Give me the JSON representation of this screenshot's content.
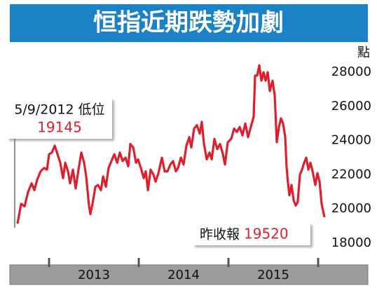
{
  "chart_data": {
    "type": "line",
    "title": "恒指近期跌勢加劇",
    "y_axis_label": "點",
    "annotations": [
      "5/9/2012 低位",
      "昨收報"
    ],
    "color": "#e01f2d",
    "x": [
      2012.648,
      2012.688,
      2012.727,
      2012.766,
      2012.805,
      2012.836,
      2012.867,
      2012.906,
      2012.945,
      2012.977,
      2013.0,
      2013.031,
      2013.063,
      2013.094,
      2013.125,
      2013.156,
      2013.18,
      2013.211,
      2013.234,
      2013.266,
      2013.297,
      2013.328,
      2013.359,
      2013.391,
      2013.414,
      2013.445,
      2013.461,
      2013.484,
      2013.516,
      2013.547,
      2013.578,
      2013.602,
      2013.633,
      2013.664,
      2013.695,
      2013.727,
      2013.758,
      2013.789,
      2013.82,
      2013.852,
      2013.883,
      2013.906,
      2013.938,
      2013.969,
      2013.992,
      2014.023,
      2014.055,
      2014.078,
      2014.102,
      2014.133,
      2014.164,
      2014.188,
      2014.219,
      2014.258,
      2014.289,
      2014.32,
      2014.352,
      2014.383,
      2014.414,
      2014.438,
      2014.469,
      2014.5,
      2014.531,
      2014.563,
      2014.586,
      2014.617,
      2014.648,
      2014.68,
      2014.703,
      2014.727,
      2014.758,
      2014.789,
      2014.813,
      2014.844,
      2014.875,
      2014.906,
      2014.938,
      2014.961,
      2014.992,
      2015.031,
      2015.063,
      2015.094,
      2015.125,
      2015.156,
      2015.188,
      2015.219,
      2015.25,
      2015.281,
      2015.297,
      2015.32,
      2015.344,
      2015.367,
      2015.391,
      2015.414,
      2015.438,
      2015.461,
      2015.492,
      2015.516,
      2015.539,
      2015.563,
      2015.586,
      2015.609,
      2015.633,
      2015.648,
      2015.664,
      2015.68,
      2015.703,
      2015.727,
      2015.75,
      2015.773,
      2015.797,
      2015.82,
      2015.844,
      2015.867,
      2015.891,
      2015.914,
      2015.938,
      2015.953,
      2015.969,
      2015.992,
      2016.016,
      2016.039,
      2016.07
    ],
    "values": [
      19145,
      20300,
      20150,
      21000,
      21500,
      21100,
      21700,
      22200,
      22400,
      22300,
      23200,
      23300,
      23700,
      23200,
      22700,
      21800,
      22700,
      22200,
      21500,
      22300,
      21200,
      22300,
      23300,
      22700,
      21900,
      20200,
      19700,
      20300,
      21300,
      21400,
      21100,
      21900,
      21300,
      22400,
      22800,
      23200,
      22700,
      23300,
      22800,
      23000,
      22500,
      23800,
      23600,
      22700,
      22900,
      22400,
      21800,
      22200,
      21100,
      22300,
      22000,
      21600,
      22100,
      23000,
      22200,
      22200,
      22600,
      22800,
      22200,
      22400,
      23000,
      22600,
      23700,
      24200,
      23600,
      24700,
      24900,
      24400,
      25100,
      23800,
      22900,
      23300,
      22900,
      24100,
      23500,
      23800,
      23200,
      22600,
      23900,
      24100,
      24700,
      24500,
      24800,
      24300,
      25000,
      24200,
      24800,
      25400,
      27800,
      27800,
      28400,
      27500,
      28000,
      27500,
      28000,
      26900,
      27500,
      26600,
      23900,
      24800,
      25300,
      25000,
      24200,
      22500,
      21500,
      20800,
      21400,
      20500,
      20200,
      20400,
      22000,
      22300,
      22700,
      23000,
      22300,
      22700,
      22200,
      21800,
      21400,
      22100,
      21600,
      20300,
      19520
    ],
    "xlim": [
      2012.57,
      2016.125
    ],
    "xticks": [
      2013,
      2014,
      2015,
      {
        "value": 2016,
        "label": null
      }
    ],
    "ylim": [
      17500,
      29000
    ],
    "yticks": [
      18000,
      20000,
      22000,
      24000,
      26000,
      28000
    ]
  }
}
